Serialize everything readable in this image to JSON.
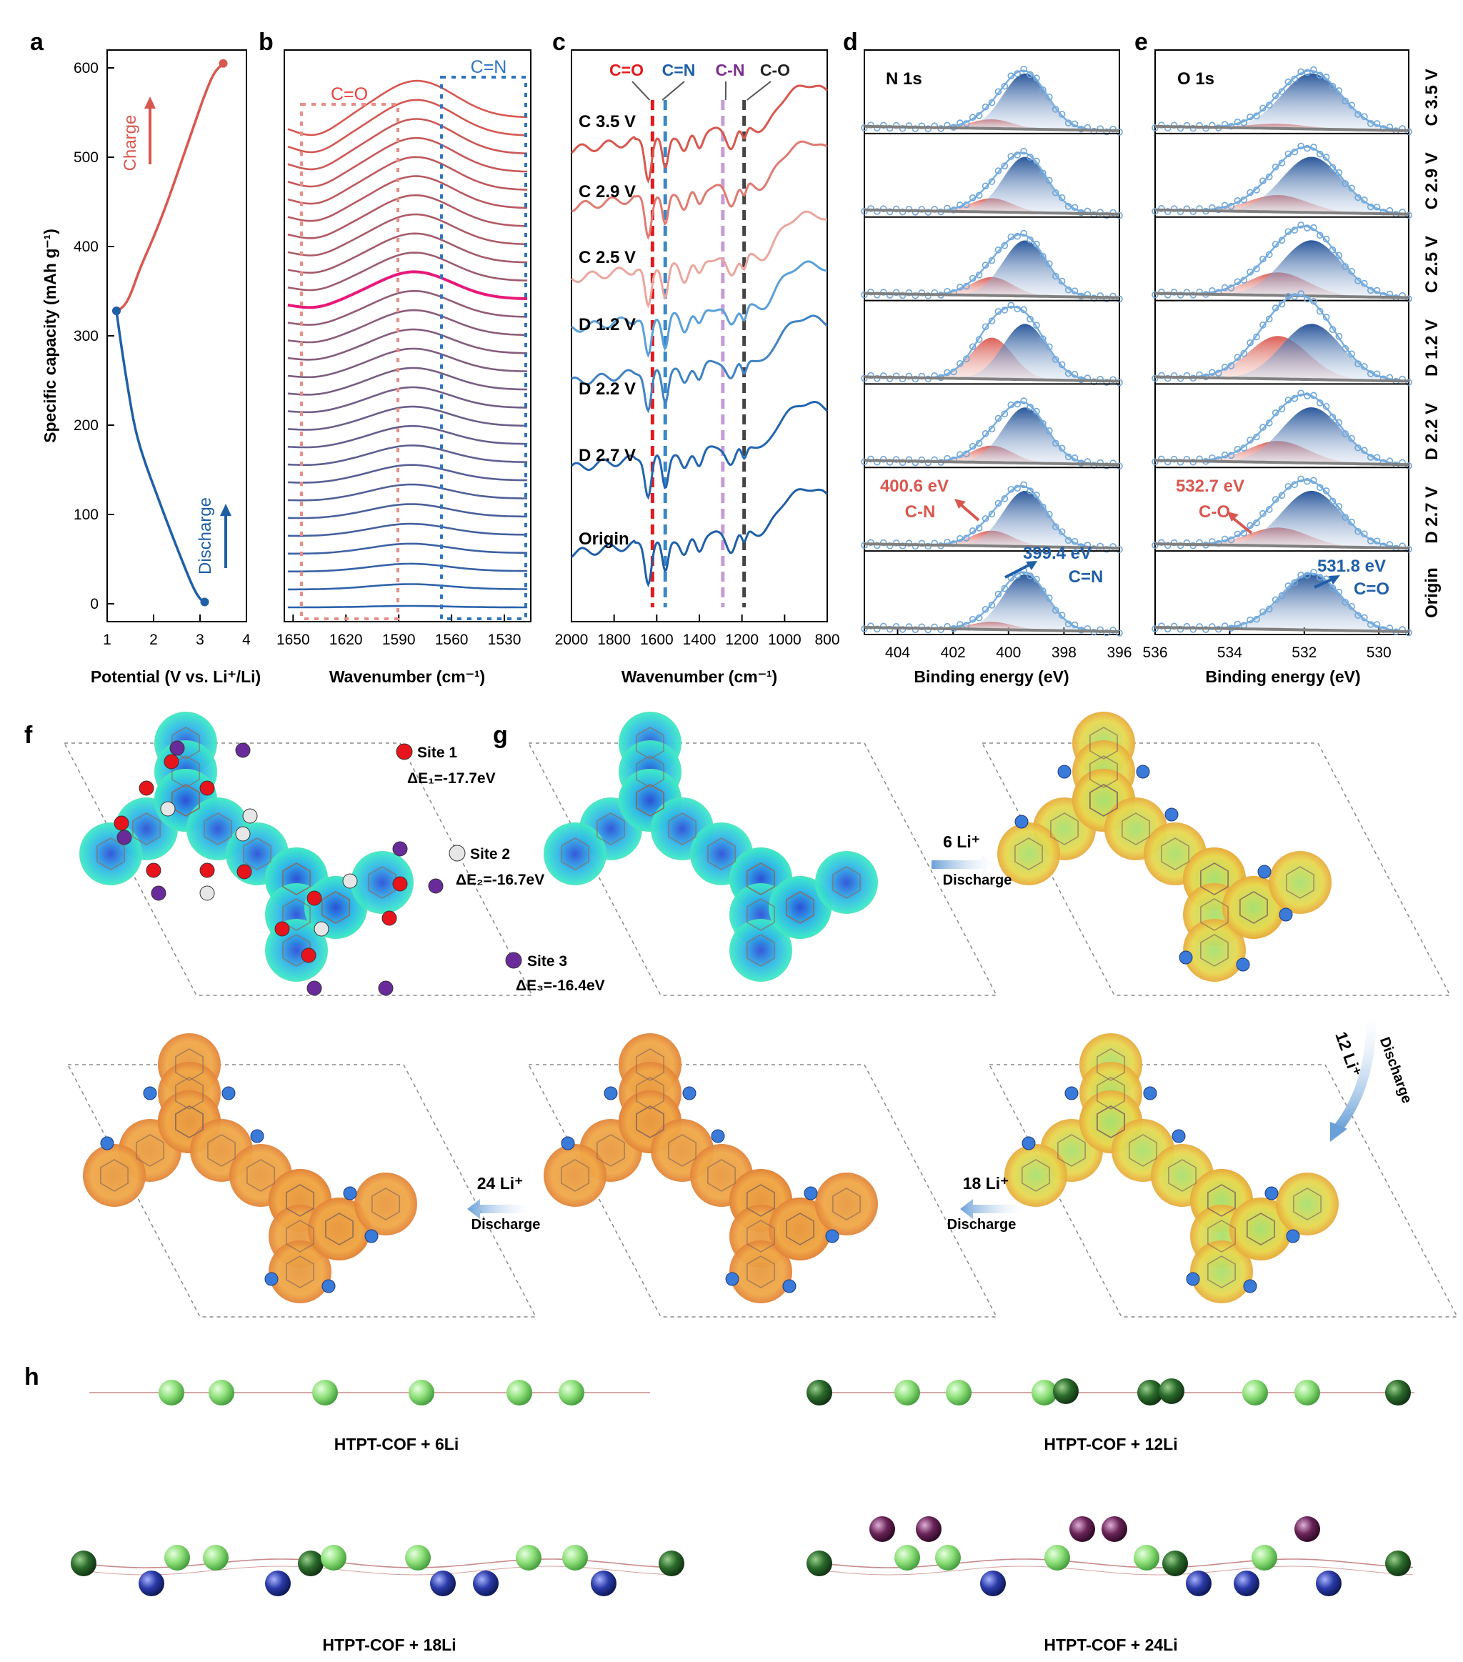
{
  "panel_letters": {
    "a": "a",
    "b": "b",
    "c": "c",
    "d": "d",
    "e": "e",
    "f": "f",
    "g": "g",
    "h": "h"
  },
  "colors": {
    "charge": "#d9574f",
    "discharge": "#1f5fa8",
    "highlight": "#e8187a",
    "co_red": "#e41a1c",
    "cn_blue": "#3a88c8",
    "cN_purple": "#c79ad6",
    "cO_dark": "#444444",
    "xps_fill_red": "#d9574f",
    "xps_fill_blue": "#1f4f96",
    "xps_circle": "#7ab0e0",
    "baseline": "#808080"
  },
  "chart_data": [
    {
      "panel": "a",
      "type": "line",
      "xlabel": "Potential (V vs. Li⁺/Li)",
      "ylabel": "Specific capacity (mAh g⁻¹)",
      "xlim": [
        1,
        4
      ],
      "ylim": [
        -20,
        620
      ],
      "xticks": [
        1,
        2,
        3,
        4
      ],
      "yticks": [
        0,
        100,
        200,
        300,
        400,
        500,
        600
      ],
      "series": [
        {
          "name": "Charge",
          "color": "#d9574f",
          "x": [
            1.2,
            1.35,
            1.5,
            1.7,
            2.0,
            2.3,
            2.6,
            2.9,
            3.1,
            3.3,
            3.5
          ],
          "y": [
            328,
            332,
            345,
            375,
            410,
            450,
            495,
            540,
            570,
            595,
            605
          ]
        },
        {
          "name": "Discharge",
          "color": "#1f5fa8",
          "x": [
            1.2,
            1.3,
            1.45,
            1.6,
            1.8,
            2.05,
            2.3,
            2.6,
            2.85,
            3.0,
            3.1
          ],
          "y": [
            328,
            290,
            240,
            195,
            160,
            125,
            90,
            50,
            18,
            5,
            2
          ]
        }
      ],
      "annotations": {
        "charge": "Charge",
        "discharge": "Discharge"
      }
    },
    {
      "panel": "b",
      "type": "line",
      "xlabel": "Wavenumber (cm⁻¹)",
      "xticks": [
        1650,
        1620,
        1590,
        1560,
        1530
      ],
      "xlim": [
        1655,
        1515
      ],
      "n_curves": 28,
      "highlight_index": 17,
      "boxes": {
        "co": "C=O",
        "cn": "C=N"
      }
    },
    {
      "panel": "c",
      "type": "line",
      "xlabel": "Wavenumber (cm⁻¹)",
      "xticks": [
        2000,
        1800,
        1600,
        1400,
        1200,
        1000,
        800
      ],
      "xlim": [
        2000,
        800
      ],
      "curve_labels": [
        "C 3.5 V",
        "C 2.9 V",
        "C 2.5 V",
        "D 1.2 V",
        "D 2.2 V",
        "D 2.7 V",
        "Origin"
      ],
      "markers": [
        {
          "label": "C=O",
          "x": 1620
        },
        {
          "label": "C=N",
          "x": 1560
        },
        {
          "label": "C-N",
          "x": 1290
        },
        {
          "label": "C-O",
          "x": 1190
        }
      ]
    },
    {
      "panel": "d",
      "type": "area",
      "title": "N 1s",
      "xlabel": "Binding energy (eV)",
      "xticks": [
        404,
        402,
        400,
        398,
        396
      ],
      "xlim": [
        405.2,
        396
      ],
      "peaks": [
        {
          "label": "C-N",
          "energy": 400.6,
          "text": "400.6 eV"
        },
        {
          "label": "C=N",
          "energy": 399.4,
          "text": "399.4 eV"
        }
      ],
      "ratios": [
        0.3,
        0.45,
        0.6,
        1.35,
        0.55,
        0.5,
        0.25
      ]
    },
    {
      "panel": "e",
      "type": "area",
      "title": "O 1s",
      "xlabel": "Binding energy (eV)",
      "xticks": [
        536,
        534,
        532,
        530
      ],
      "xlim": [
        536,
        529.2
      ],
      "peaks": [
        {
          "label": "C-O",
          "energy": 532.7,
          "text": "532.7 eV"
        },
        {
          "label": "C=O",
          "energy": 531.8,
          "text": "531.8 eV"
        }
      ],
      "side_labels": [
        "C 3.5 V",
        "C 2.9 V",
        "C 2.5 V",
        "D 1.2 V",
        "D 2.2 V",
        "D 2.7 V",
        "Origin"
      ],
      "ratios": [
        0.15,
        0.55,
        0.75,
        1.4,
        0.7,
        0.6,
        0.05
      ]
    }
  ],
  "panel_f": {
    "sites": [
      {
        "name": "Site 1",
        "energy": "ΔE₁=-17.7eV",
        "color": "#e8141c"
      },
      {
        "name": "Site 2",
        "energy": "ΔE₂=-16.7eV",
        "color": "#e6e6e6"
      },
      {
        "name": "Site 3",
        "energy": "ΔE₃=-16.4eV",
        "color": "#6a2b9a"
      }
    ]
  },
  "panel_g": {
    "steps": [
      {
        "li": "6 Li⁺",
        "action": "Discharge"
      },
      {
        "li": "12 Li⁺",
        "action": "Discharge"
      },
      {
        "li": "18 Li⁺",
        "action": "Discharge"
      },
      {
        "li": "24 Li⁺",
        "action": "Discharge"
      }
    ]
  },
  "panel_h": {
    "labels": [
      "HTPT-COF + 6Li",
      "HTPT-COF + 12Li",
      "HTPT-COF + 18Li",
      "HTPT-COF + 24Li"
    ]
  }
}
